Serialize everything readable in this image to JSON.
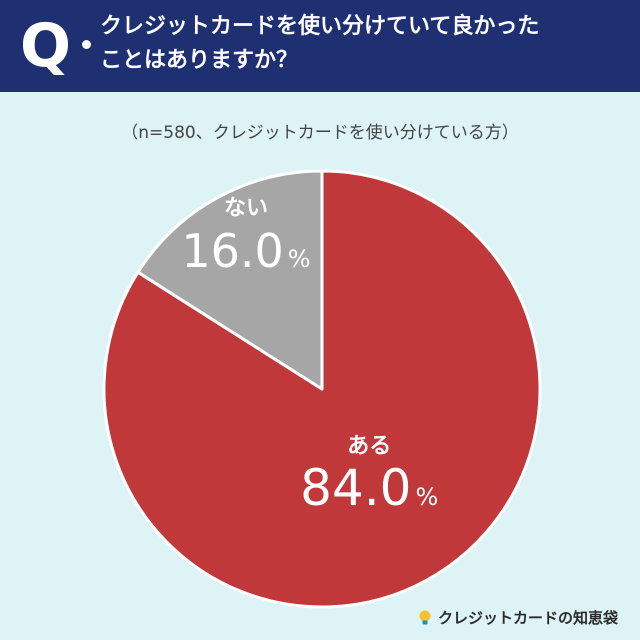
{
  "header": {
    "q_label": "Q",
    "question": "クレジットカードを使い分けていて良かった\nことはありますか？"
  },
  "note": "（n=580、クレジットカードを使い分けている方）",
  "colors": {
    "header_bg": "#1e2f72",
    "yes": "#c0383a",
    "no": "#a6a6a6",
    "bg": "#ddf3f6"
  },
  "chart_data": {
    "type": "pie",
    "slices": [
      {
        "label": "ある",
        "value": 84.0,
        "display": "84.0",
        "color": "#c0383a"
      },
      {
        "label": "ない",
        "value": 16.0,
        "display": "16.0",
        "color": "#a6a6a6"
      }
    ],
    "unit": "%"
  },
  "brand": {
    "name": "クレジットカードの知恵袋",
    "icon": "lightbulb-icon"
  }
}
